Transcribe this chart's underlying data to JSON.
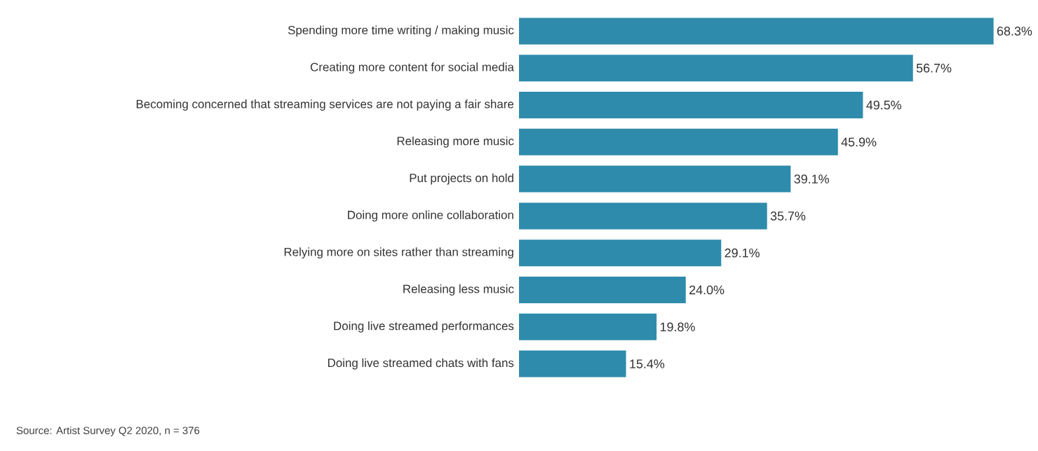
{
  "chart_data": {
    "type": "bar",
    "orientation": "horizontal",
    "color": "#2e8bab",
    "categories": [
      "Spending more time writing / making music",
      "Creating more content for social media",
      "Becoming concerned that streaming services are not paying a fair share",
      "Releasing more music",
      "Put projects on hold",
      "Doing more online collaboration",
      "Relying more on sites rather than streaming",
      "Releasing less music",
      "Doing live streamed performances",
      "Doing live streamed chats with fans"
    ],
    "values": [
      68.3,
      56.7,
      49.5,
      45.9,
      39.1,
      35.7,
      29.1,
      24.0,
      19.8,
      15.4
    ],
    "value_labels": [
      "68.3%",
      "56.7%",
      "49.5%",
      "45.9%",
      "39.1%",
      "35.7%",
      "29.1%",
      "24.0%",
      "19.8%",
      "15.4%"
    ],
    "annotations": [
      "Source: Artist Survey Q2 2020, n = 376"
    ]
  }
}
